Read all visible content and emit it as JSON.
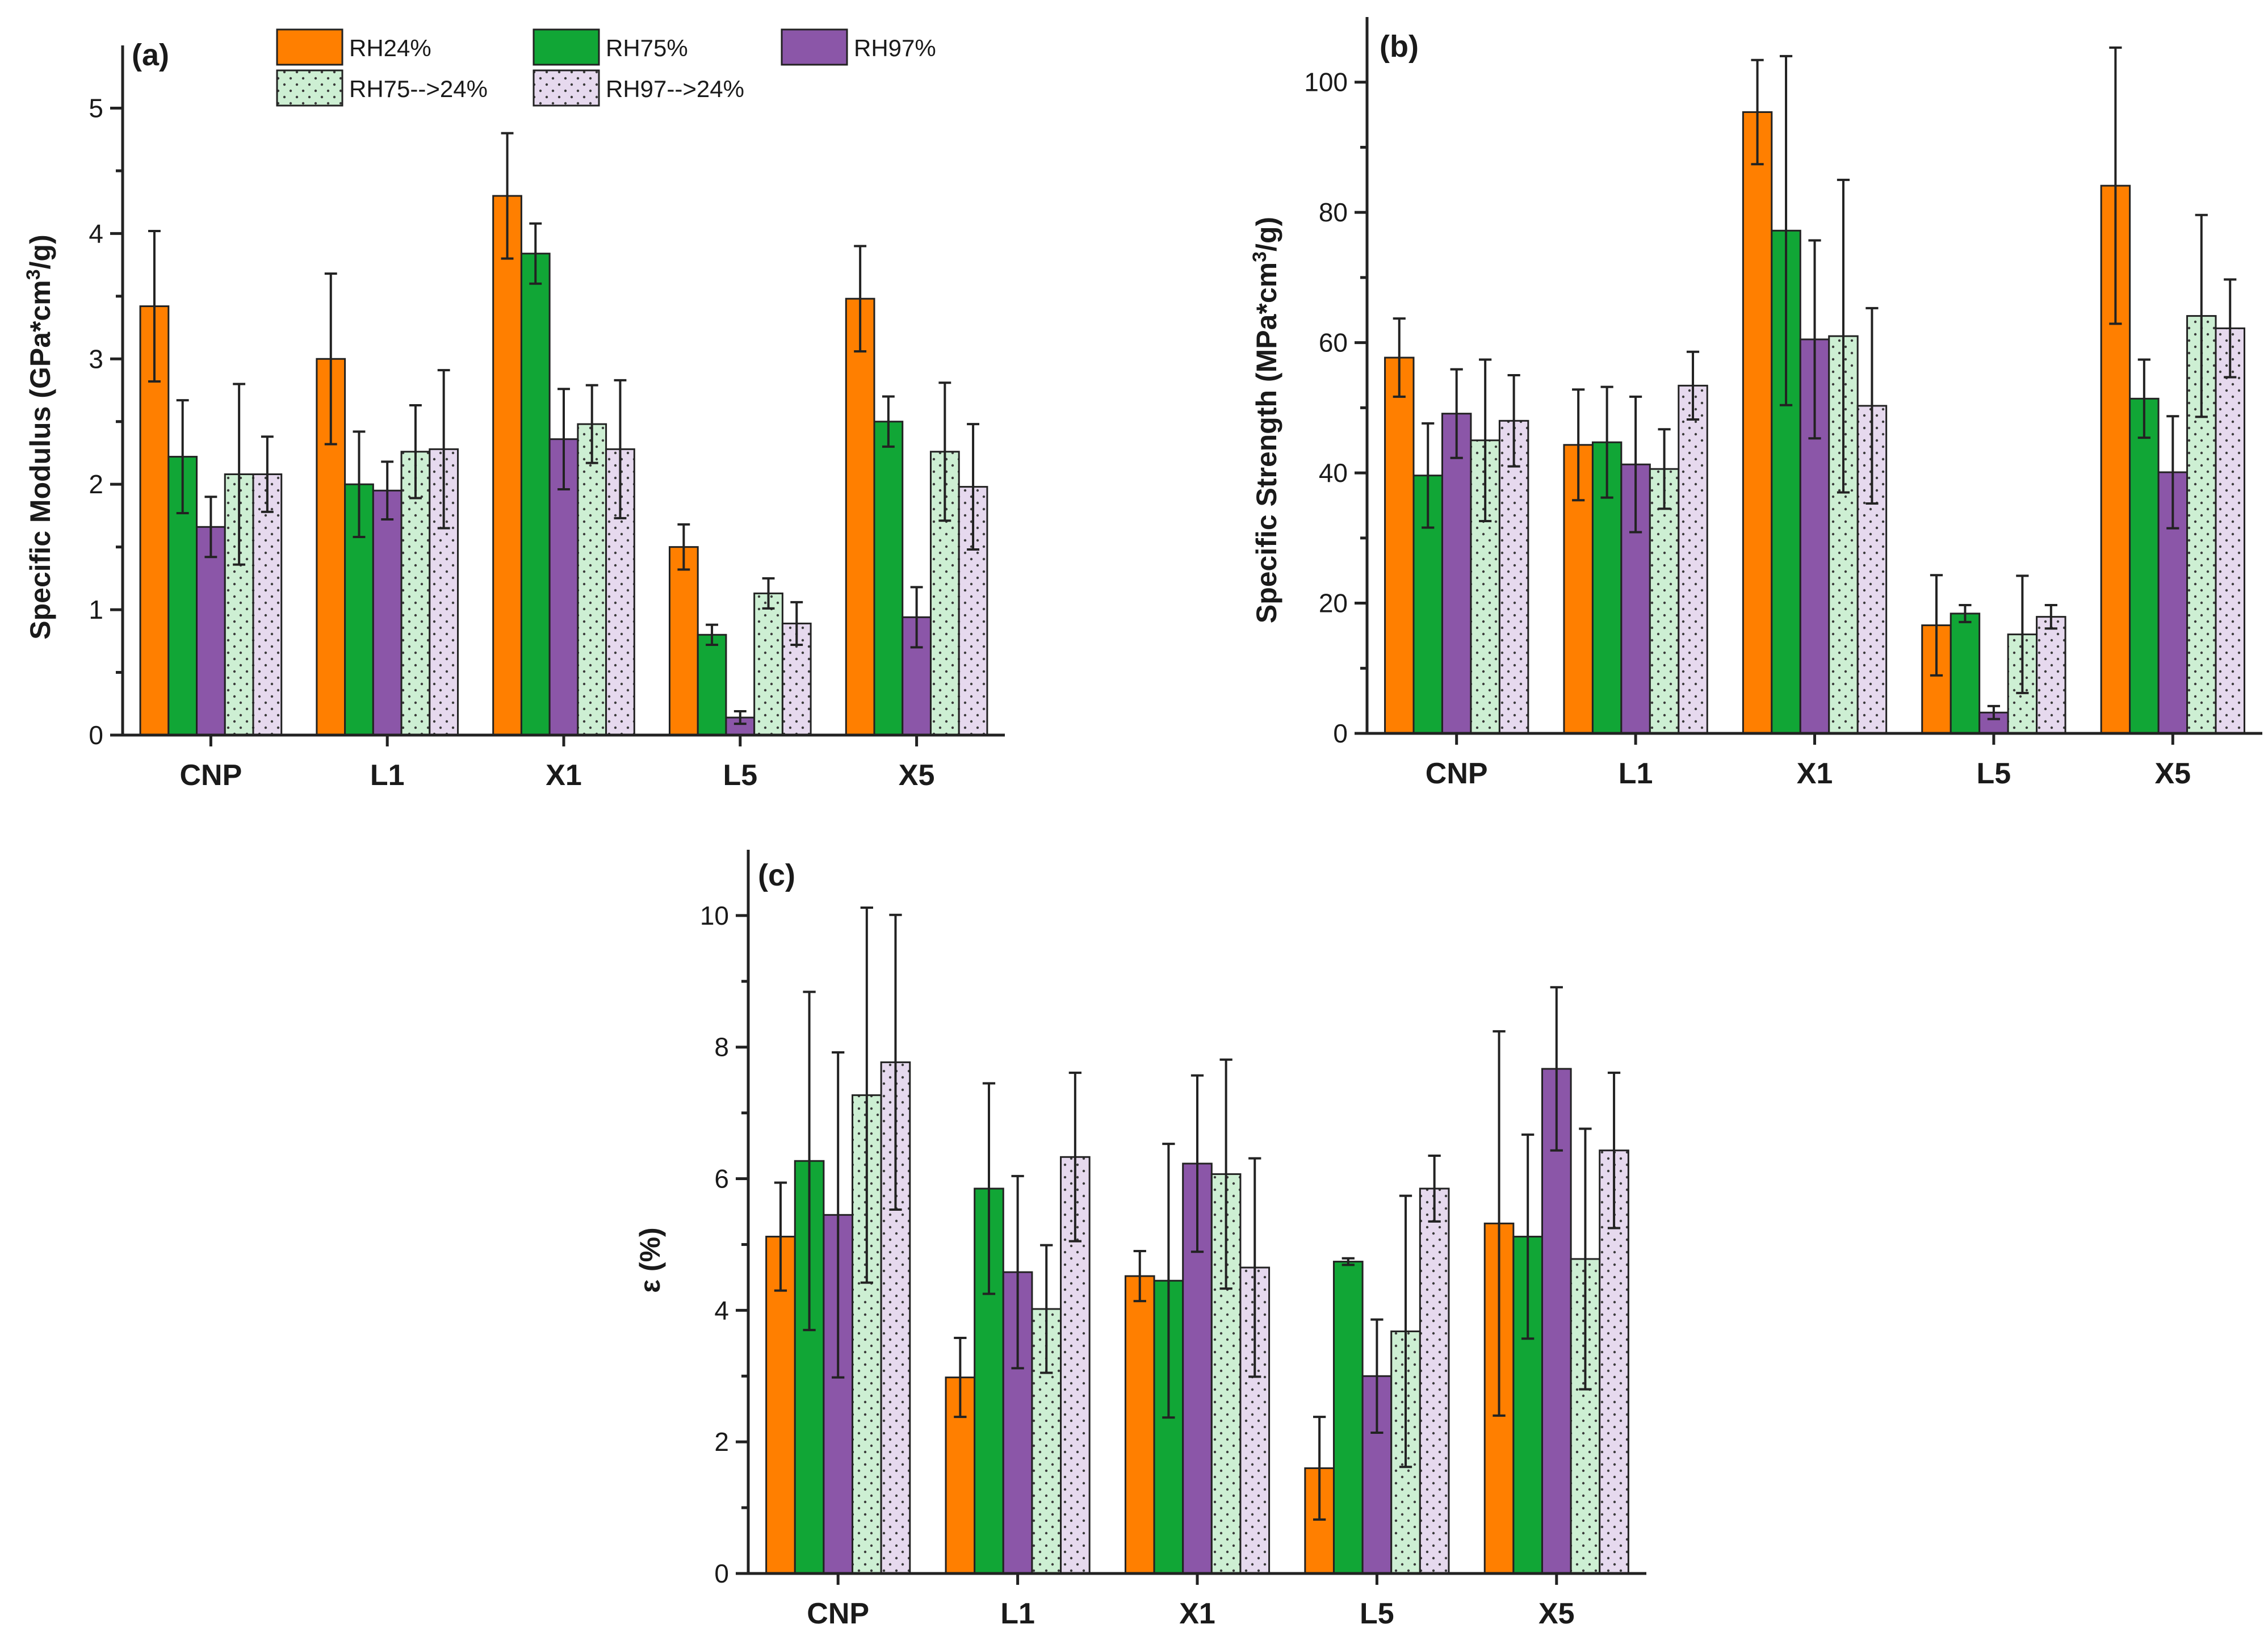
{
  "legend": {
    "items": [
      {
        "name": "RH24%",
        "color": "#FF7F00",
        "pattern": "solid"
      },
      {
        "name": "RH75%",
        "color": "#11A636",
        "pattern": "solid"
      },
      {
        "name": "RH97%",
        "color": "#8B56A8",
        "pattern": "solid"
      },
      {
        "name": "RH75-->24%",
        "color": "#CDEFD3",
        "pattern": "dots"
      },
      {
        "name": "RH97-->24%",
        "color": "#E6D9EE",
        "pattern": "dots"
      }
    ]
  },
  "chart_data": [
    {
      "type": "bar",
      "panel_label": "(a)",
      "title": "",
      "xlabel": "",
      "ylabel_parts": [
        "Specific Modulus (GPa*cm",
        "3",
        "/g)"
      ],
      "categories": [
        "CNP",
        "L1",
        "X1",
        "L5",
        "X5"
      ],
      "ylim": [
        0,
        5.5
      ],
      "yticks": [
        "0",
        "1",
        "2",
        "3",
        "4",
        "5"
      ],
      "ytick_values": [
        0,
        1,
        2,
        3,
        4,
        5
      ],
      "series": [
        {
          "name": "RH24%",
          "values": [
            3.42,
            3.0,
            4.3,
            1.5,
            3.48
          ],
          "errors": [
            0.6,
            0.68,
            0.5,
            0.18,
            0.42
          ]
        },
        {
          "name": "RH75%",
          "values": [
            2.22,
            2.0,
            3.84,
            0.8,
            2.5
          ],
          "errors": [
            0.45,
            0.42,
            0.24,
            0.08,
            0.2
          ]
        },
        {
          "name": "RH97%",
          "values": [
            1.66,
            1.95,
            2.36,
            0.14,
            0.94
          ],
          "errors": [
            0.24,
            0.23,
            0.4,
            0.05,
            0.24
          ]
        },
        {
          "name": "RH75-->24%",
          "values": [
            2.08,
            2.26,
            2.48,
            1.13,
            2.26
          ],
          "errors": [
            0.72,
            0.37,
            0.31,
            0.12,
            0.55
          ]
        },
        {
          "name": "RH97-->24%",
          "values": [
            2.08,
            2.28,
            2.28,
            0.89,
            1.98
          ],
          "errors": [
            0.3,
            0.63,
            0.55,
            0.17,
            0.5
          ]
        }
      ]
    },
    {
      "type": "bar",
      "panel_label": "(b)",
      "title": "",
      "xlabel": "",
      "ylabel_parts": [
        "Specific Strength (MPa*cm",
        "3",
        "/g)"
      ],
      "categories": [
        "CNP",
        "L1",
        "X1",
        "L5",
        "X5"
      ],
      "ylim": [
        0,
        110
      ],
      "yticks": [
        "0",
        "20",
        "40",
        "60",
        "80",
        "100"
      ],
      "ytick_values": [
        0,
        20,
        40,
        60,
        80,
        100
      ],
      "series": [
        {
          "name": "RH24%",
          "values": [
            57.7,
            44.3,
            95.4,
            16.6,
            84.1
          ],
          "errors": [
            6.0,
            8.5,
            8.0,
            7.7,
            21.2
          ]
        },
        {
          "name": "RH75%",
          "values": [
            39.6,
            44.7,
            77.2,
            18.4,
            51.4
          ],
          "errors": [
            8.0,
            8.5,
            26.8,
            1.3,
            6.0
          ]
        },
        {
          "name": "RH97%",
          "values": [
            49.1,
            41.3,
            60.5,
            3.2,
            40.1
          ],
          "errors": [
            6.8,
            10.4,
            15.2,
            1.0,
            8.6
          ]
        },
        {
          "name": "RH75-->24%",
          "values": [
            45.0,
            40.6,
            61.0,
            15.2,
            64.1
          ],
          "errors": [
            12.4,
            6.1,
            24.0,
            9.0,
            15.5
          ]
        },
        {
          "name": "RH97-->24%",
          "values": [
            48.0,
            53.4,
            50.3,
            17.9,
            62.2
          ],
          "errors": [
            7.0,
            5.2,
            15.0,
            1.8,
            7.5
          ]
        }
      ]
    },
    {
      "type": "bar",
      "panel_label": "(c)",
      "title": "",
      "xlabel": "",
      "ylabel_parts": [
        "ε (%)",
        "",
        ""
      ],
      "categories": [
        "CNP",
        "L1",
        "X1",
        "L5",
        "X5"
      ],
      "ylim": [
        0,
        11
      ],
      "yticks": [
        "0",
        "2",
        "4",
        "6",
        "8",
        "10"
      ],
      "ytick_values": [
        0,
        2,
        4,
        6,
        8,
        10
      ],
      "series": [
        {
          "name": "RH24%",
          "values": [
            5.12,
            2.98,
            4.52,
            1.6,
            5.32
          ],
          "errors": [
            0.82,
            0.6,
            0.38,
            0.78,
            2.92
          ]
        },
        {
          "name": "RH75%",
          "values": [
            6.27,
            5.85,
            4.45,
            4.74,
            5.12
          ],
          "errors": [
            2.57,
            1.6,
            2.08,
            0.05,
            1.55
          ]
        },
        {
          "name": "RH97%",
          "values": [
            5.45,
            4.58,
            6.23,
            3.0,
            7.67
          ],
          "errors": [
            2.47,
            1.46,
            1.34,
            0.86,
            1.24
          ]
        },
        {
          "name": "RH75-->24%",
          "values": [
            7.27,
            4.02,
            6.07,
            3.68,
            4.78
          ],
          "errors": [
            2.85,
            0.97,
            1.74,
            2.06,
            1.98
          ]
        },
        {
          "name": "RH97-->24%",
          "values": [
            7.77,
            6.33,
            4.65,
            5.85,
            6.43
          ],
          "errors": [
            2.24,
            1.28,
            1.66,
            0.5,
            1.18
          ]
        }
      ]
    }
  ]
}
